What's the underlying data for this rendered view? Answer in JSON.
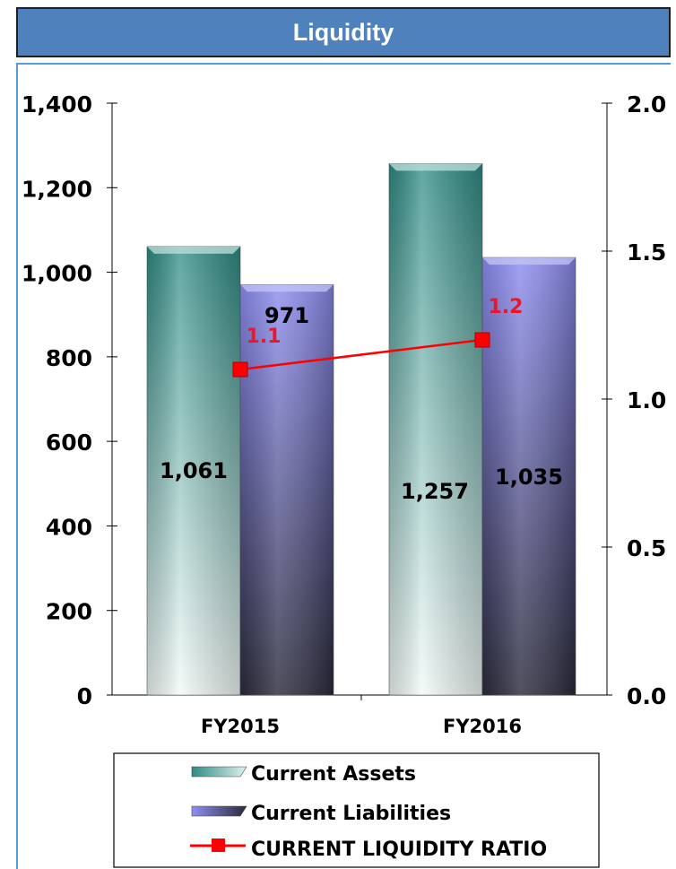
{
  "header": {
    "title": "Liquidity"
  },
  "chart_data": {
    "type": "bar",
    "categories": [
      "FY2015",
      "FY2016"
    ],
    "series": [
      {
        "name": "Current Assets",
        "type": "bar",
        "axis": "left",
        "values": [
          1061,
          1257
        ],
        "labels": [
          "1,061",
          "1,257"
        ]
      },
      {
        "name": "Current Liabilities",
        "type": "bar",
        "axis": "left",
        "values": [
          971,
          1035
        ],
        "labels": [
          "971",
          "1,035"
        ]
      },
      {
        "name": "CURRENT LIQUIDITY RATIO",
        "type": "line",
        "axis": "right",
        "values": [
          1.1,
          1.2
        ],
        "labels": [
          "1.1",
          "1.2"
        ]
      }
    ],
    "ylim": [
      0,
      1400
    ],
    "y_ticks": [
      "0",
      "200",
      "400",
      "600",
      "800",
      "1,000",
      "1,200",
      "1,400"
    ],
    "y2lim": [
      0,
      2.0
    ],
    "y2_ticks": [
      "0.0",
      "0.5",
      "1.0",
      "1.5",
      "2.0"
    ],
    "colors": {
      "assets": "#2e8b84",
      "liabilities": "#8c8cf0",
      "ratio": "#ff0000",
      "ratio_label": "#e8182c"
    },
    "legend_position": "bottom"
  }
}
